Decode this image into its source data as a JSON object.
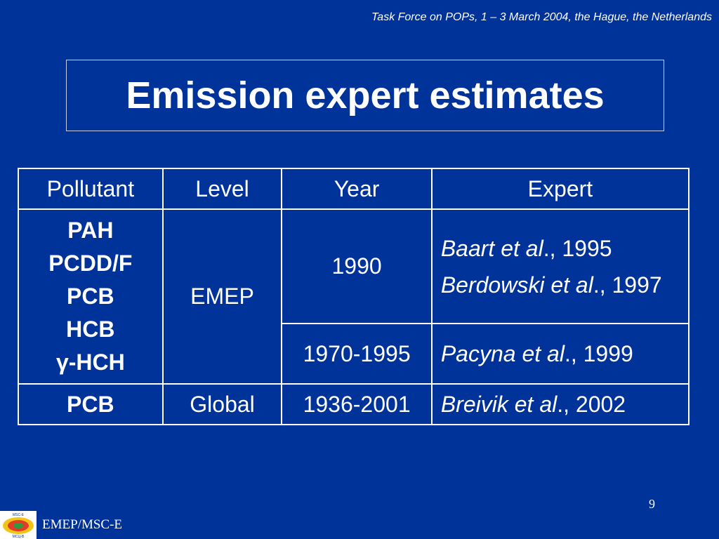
{
  "header_note": "Task Force on POPs, 1 – 3 March 2004, the Hague, the Netherlands",
  "title": "Emission expert estimates",
  "table": {
    "headers": [
      "Pollutant",
      "Level",
      "Year",
      "Expert"
    ],
    "group1": {
      "pollutants": [
        "PAH",
        "PCDD/F",
        "PCB",
        "HCB",
        "γ-HCH"
      ],
      "level": "EMEP",
      "row_a": {
        "year": "1990",
        "experts": [
          {
            "name": "Baart et al",
            "suffix": "., 1995"
          },
          {
            "name": "Berdowski et al",
            "suffix": "., 1997"
          }
        ]
      },
      "row_b": {
        "year": "1970-1995",
        "expert": {
          "name": "Pacyna et al",
          "suffix": "., 1999"
        }
      }
    },
    "row_global": {
      "pollutant": "PCB",
      "level": "Global",
      "year": "1936-2001",
      "expert": {
        "name": "Breivik et al",
        "suffix": "., 2002"
      }
    }
  },
  "page_number": "9",
  "footer": {
    "org": "EMEP/MSC-E",
    "logo_text_top": "MSC-E",
    "logo_text_bottom": "МСЦ-В"
  }
}
